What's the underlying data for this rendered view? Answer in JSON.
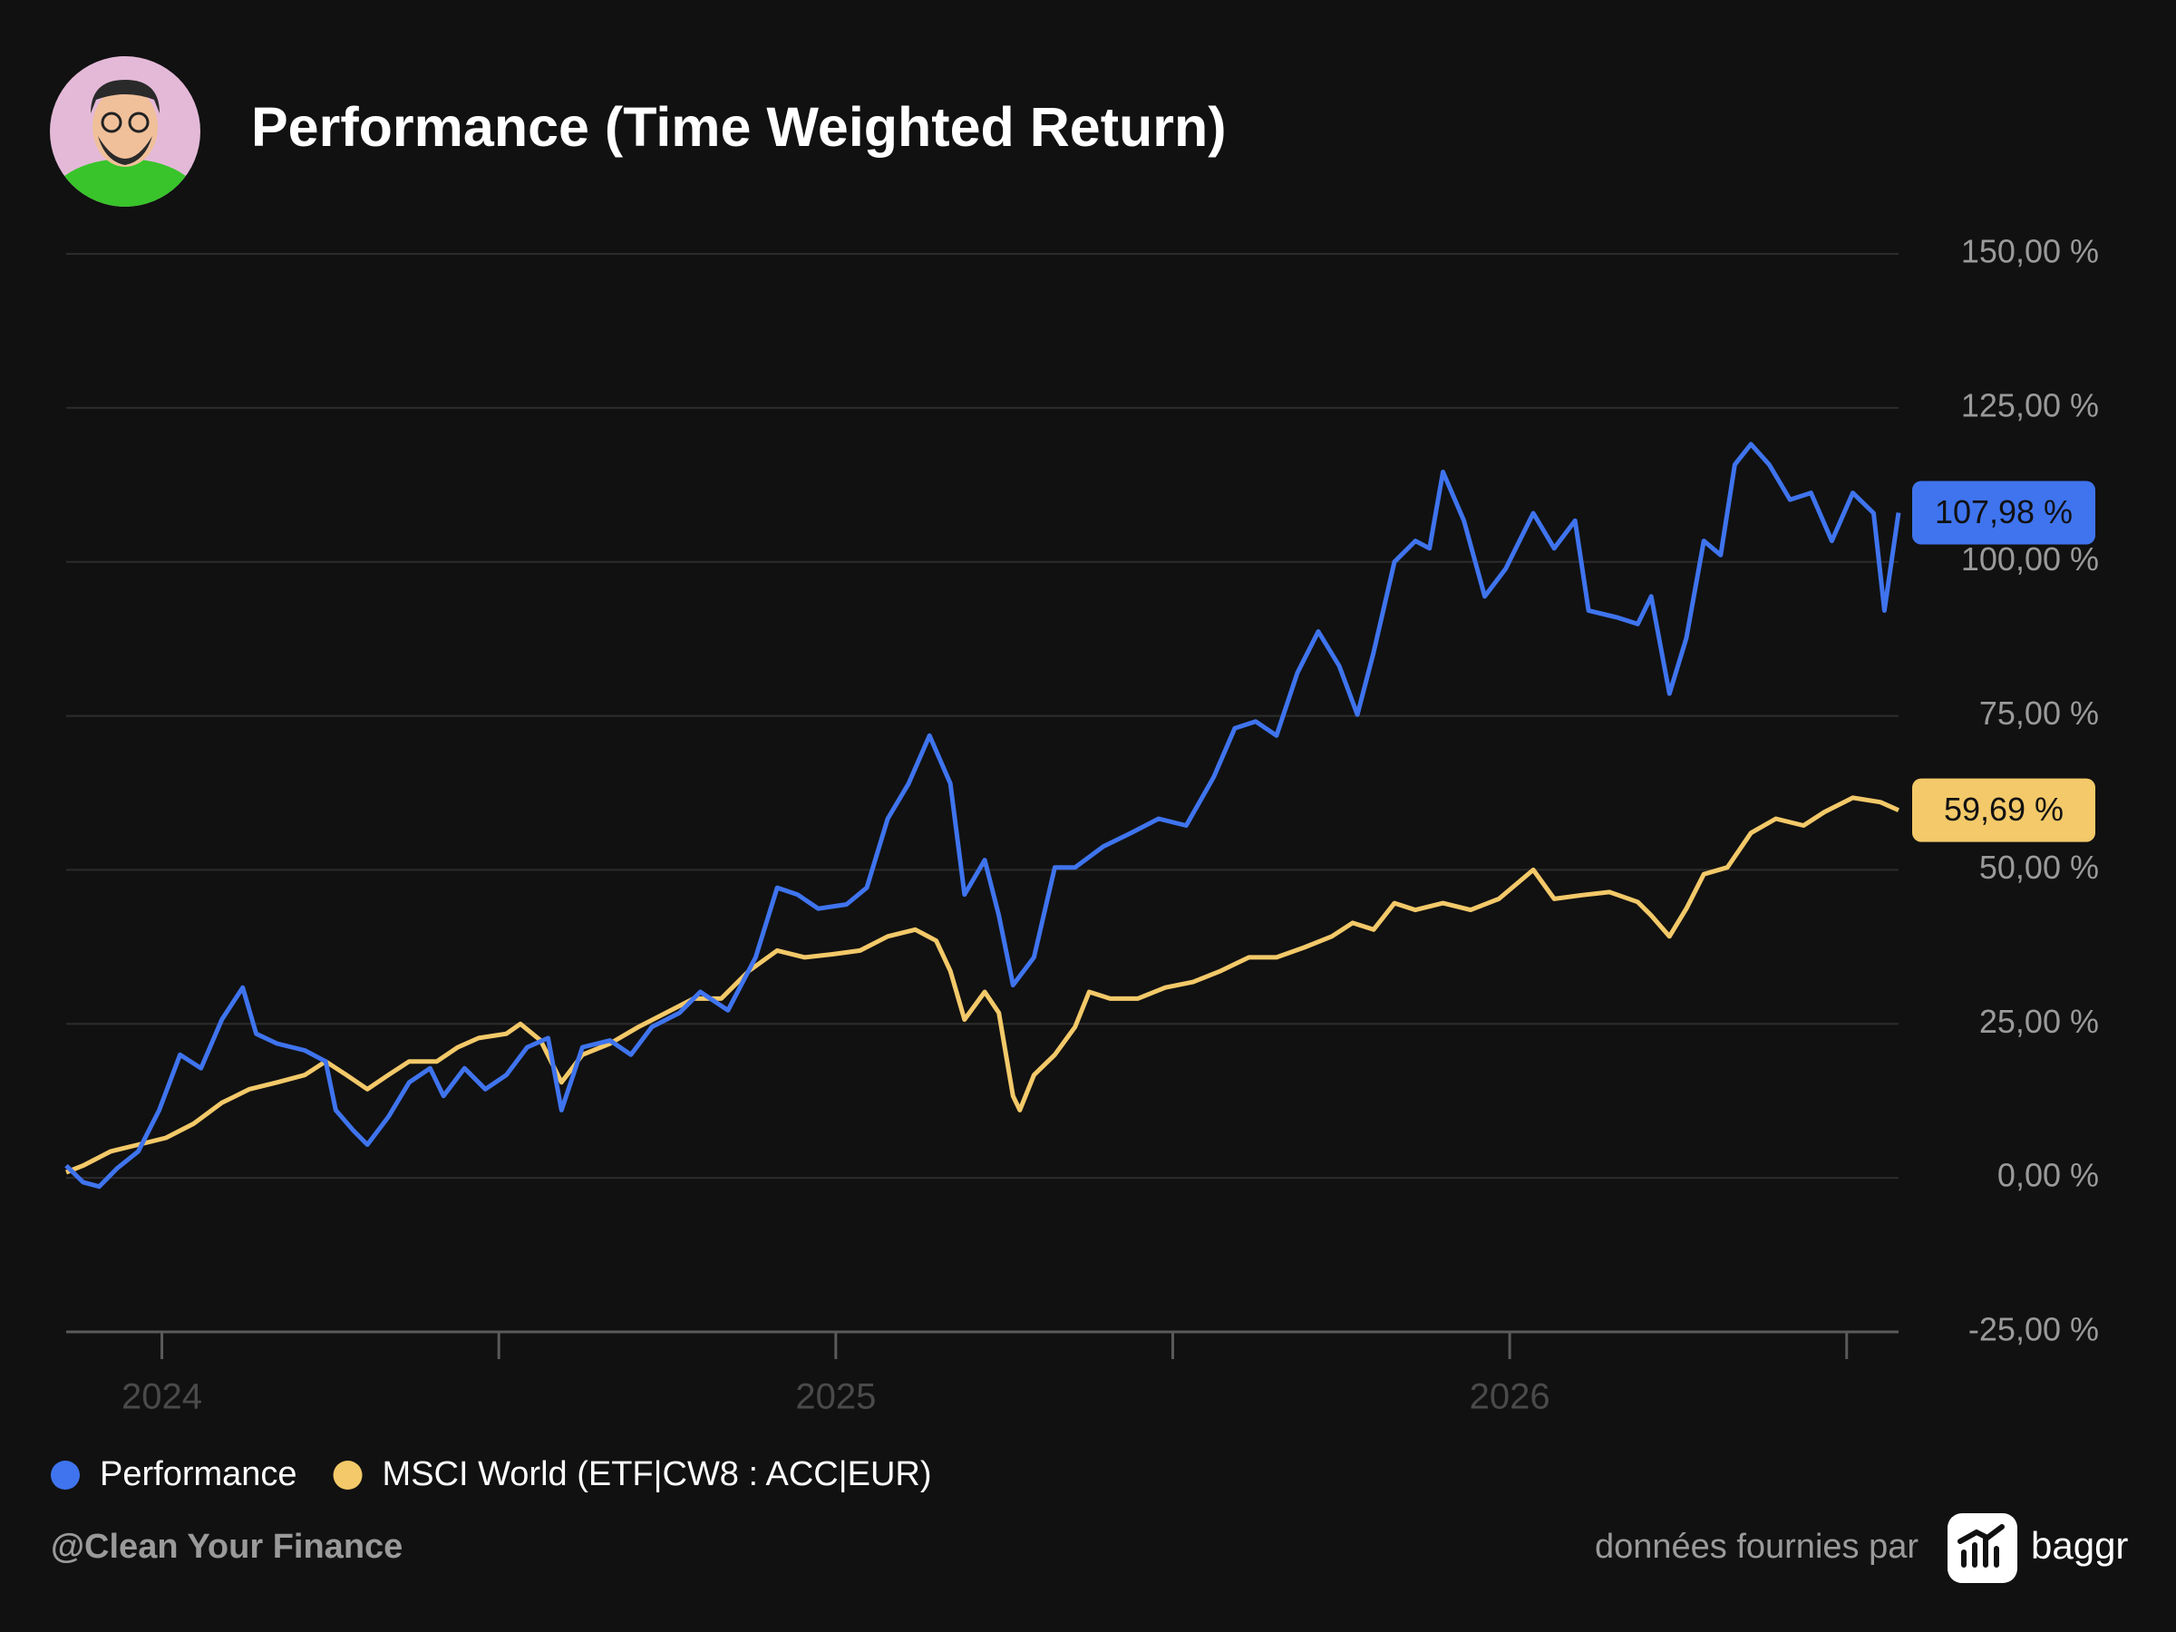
{
  "chart_data": {
    "type": "line",
    "title": "Performance (Time Weighted Return)",
    "xlim": [
      2023.858,
      2026.577
    ],
    "xticks": [
      2024,
      2025,
      2026
    ],
    "xminor_ticks": [
      2024.5,
      2025.5,
      2026.5
    ],
    "ylim": [
      -25,
      150
    ],
    "yticks": [
      {
        "value": -25,
        "label": "-25,00 %"
      },
      {
        "value": 0,
        "label": "0,00 %"
      },
      {
        "value": 25,
        "label": "25,00 %"
      },
      {
        "value": 50,
        "label": "50,00 %"
      },
      {
        "value": 75,
        "label": "75,00 %"
      },
      {
        "value": 100,
        "label": "100,00 %"
      },
      {
        "value": 125,
        "label": "125,00 %"
      },
      {
        "value": 150,
        "label": "150,00 %"
      }
    ],
    "grid": true,
    "series": [
      {
        "name": "Performance",
        "color": "#3f74ee",
        "last_label": "107,98 %",
        "x": [
          2023.858,
          2023.883,
          2023.907,
          2023.934,
          2023.965,
          2023.996,
          2024.027,
          2024.058,
          2024.089,
          2024.12,
          2024.14,
          2024.171,
          2024.212,
          2024.243,
          2024.258,
          2024.284,
          2024.305,
          2024.336,
          2024.367,
          2024.398,
          2024.418,
          2024.449,
          2024.48,
          2024.511,
          2024.542,
          2024.573,
          2024.593,
          2024.624,
          2024.665,
          2024.696,
          2024.727,
          2024.768,
          2024.799,
          2024.84,
          2024.881,
          2024.913,
          2024.943,
          2024.974,
          2025.016,
          2025.046,
          2025.077,
          2025.108,
          2025.139,
          2025.17,
          2025.191,
          2025.221,
          2025.242,
          2025.263,
          2025.294,
          2025.325,
          2025.355,
          2025.397,
          2025.438,
          2025.479,
          2025.52,
          2025.561,
          2025.592,
          2025.623,
          2025.654,
          2025.685,
          2025.716,
          2025.747,
          2025.774,
          2025.798,
          2025.829,
          2025.86,
          2025.881,
          2025.901,
          2025.932,
          2025.963,
          2025.994,
          2026.035,
          2026.066,
          2026.097,
          2026.117,
          2026.159,
          2026.19,
          2026.21,
          2026.237,
          2026.262,
          2026.288,
          2026.313,
          2026.334,
          2026.358,
          2026.385,
          2026.416,
          2026.447,
          2026.478,
          2026.509,
          2026.54,
          2026.556,
          2026.577
        ],
        "values": [
          2.0,
          -0.7,
          -1.4,
          1.6,
          4.3,
          11.0,
          20.0,
          17.8,
          25.7,
          30.9,
          23.4,
          21.8,
          20.7,
          18.9,
          11.0,
          7.7,
          5.4,
          9.9,
          15.5,
          17.8,
          13.3,
          17.8,
          14.4,
          16.7,
          21.2,
          22.7,
          11.0,
          21.2,
          22.3,
          20.0,
          24.5,
          26.8,
          30.2,
          27.2,
          35.8,
          47.1,
          46.0,
          43.7,
          44.4,
          47.1,
          58.3,
          64.0,
          71.8,
          64.0,
          46.0,
          51.6,
          42.6,
          31.3,
          35.8,
          50.4,
          50.4,
          53.8,
          56.0,
          58.3,
          57.2,
          65.1,
          73.0,
          74.1,
          71.8,
          82.0,
          88.7,
          83.1,
          75.2,
          85.3,
          100.0,
          103.4,
          102.2,
          114.6,
          106.7,
          94.4,
          98.9,
          107.9,
          102.2,
          106.7,
          92.1,
          91.0,
          89.9,
          94.4,
          78.6,
          87.6,
          103.4,
          101.1,
          115.8,
          119.1,
          115.8,
          110.1,
          111.2,
          103.4,
          111.2,
          107.9,
          92.1,
          107.98
        ]
      },
      {
        "name": "MSCI World (ETF|CW8 : ACC|EUR)",
        "color": "#f3c969",
        "last_label": "59,69 %",
        "x": [
          2023.858,
          2023.883,
          2023.924,
          2023.965,
          2024.006,
          2024.047,
          2024.089,
          2024.13,
          2024.171,
          2024.212,
          2024.243,
          2024.274,
          2024.305,
          2024.336,
          2024.367,
          2024.408,
          2024.439,
          2024.47,
          2024.511,
          2024.532,
          2024.562,
          2024.593,
          2024.624,
          2024.665,
          2024.707,
          2024.748,
          2024.789,
          2024.83,
          2024.871,
          2024.913,
          2024.954,
          2024.995,
          2025.036,
          2025.077,
          2025.118,
          2025.149,
          2025.17,
          2025.191,
          2025.221,
          2025.242,
          2025.263,
          2025.273,
          2025.294,
          2025.325,
          2025.355,
          2025.376,
          2025.407,
          2025.448,
          2025.489,
          2025.53,
          2025.571,
          2025.613,
          2025.654,
          2025.695,
          2025.736,
          2025.767,
          2025.798,
          2025.829,
          2025.86,
          2025.901,
          2025.942,
          2025.984,
          2026.035,
          2026.066,
          2026.107,
          2026.148,
          2026.19,
          2026.21,
          2026.237,
          2026.262,
          2026.288,
          2026.323,
          2026.358,
          2026.395,
          2026.436,
          2026.467,
          2026.509,
          2026.55,
          2026.577
        ],
        "values": [
          0.9,
          2.0,
          4.3,
          5.4,
          6.5,
          8.8,
          12.2,
          14.4,
          15.5,
          16.7,
          18.9,
          16.7,
          14.4,
          16.7,
          18.9,
          18.9,
          21.2,
          22.7,
          23.4,
          25.0,
          22.3,
          15.5,
          20.0,
          21.8,
          24.5,
          26.8,
          29.1,
          29.1,
          33.6,
          36.9,
          35.8,
          36.3,
          36.9,
          39.2,
          40.3,
          38.5,
          33.6,
          25.7,
          30.2,
          26.8,
          13.3,
          11.0,
          16.7,
          20.0,
          24.5,
          30.2,
          29.1,
          29.1,
          30.9,
          31.8,
          33.6,
          35.8,
          35.8,
          37.4,
          39.2,
          41.4,
          40.3,
          44.6,
          43.5,
          44.6,
          43.5,
          45.3,
          50.0,
          45.3,
          45.9,
          46.4,
          44.8,
          42.6,
          39.2,
          43.7,
          49.3,
          50.4,
          56.0,
          58.3,
          57.2,
          59.4,
          61.7,
          61.0,
          59.69
        ]
      }
    ]
  },
  "footer": {
    "credit": "@Clean Your Finance",
    "source": "données fournies par",
    "brand": "baggr"
  }
}
